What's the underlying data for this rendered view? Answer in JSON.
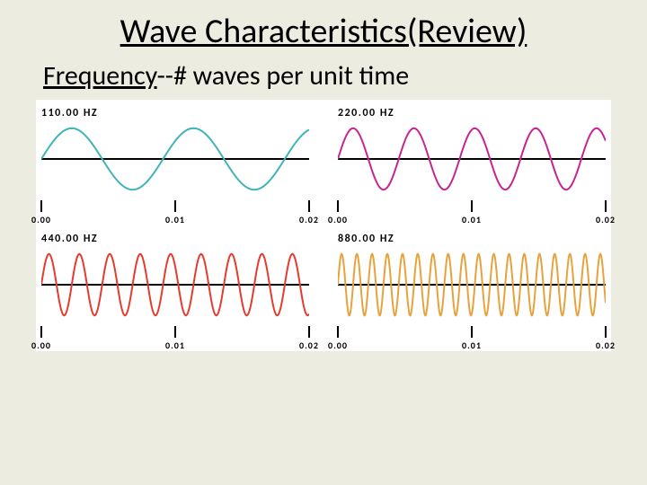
{
  "slide": {
    "background_color": "#edece0",
    "title": "Wave Characteristics(Review)",
    "subtitle_underlined": "Frequency",
    "subtitle_rest": "--# waves per unit time"
  },
  "panels_bg": "#ffffff",
  "axis_color": "#000000",
  "time_axis": {
    "tick_values": [
      "0.00",
      "0.01",
      "0.02"
    ],
    "xmin": 0.0,
    "xmax": 0.02
  },
  "waves": [
    {
      "label": "110.00 HZ",
      "hz": 110.0,
      "cycles_in_window": 2.2,
      "color": "#3fb4b8",
      "line_width": 2,
      "amplitude": 0.9
    },
    {
      "label": "220.00 HZ",
      "hz": 220.0,
      "cycles_in_window": 4.4,
      "color": "#c6258f",
      "line_width": 2,
      "amplitude": 0.9
    },
    {
      "label": "440.00 HZ",
      "hz": 440.0,
      "cycles_in_window": 8.8,
      "color": "#e63a2e",
      "line_width": 2,
      "amplitude": 0.9
    },
    {
      "label": "880.00 HZ",
      "hz": 880.0,
      "cycles_in_window": 17.6,
      "color": "#e8a23c",
      "line_width": 2,
      "amplitude": 0.9
    }
  ],
  "tick_label_fontsize": 10,
  "panel_label_fontsize": 12
}
